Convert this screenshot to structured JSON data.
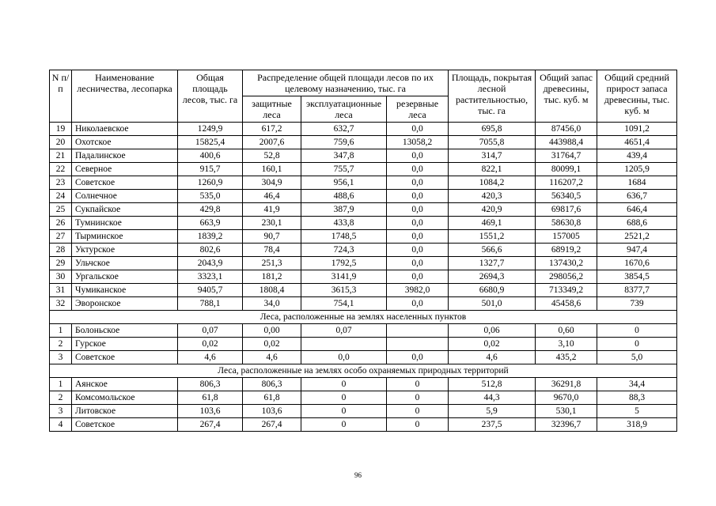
{
  "page": {
    "number": "96"
  },
  "table": {
    "header": {
      "col_n": "N п/п",
      "col_name": "Наименование лесничества, лесопарка",
      "col_total_area": "Общая площадь лесов, тыс. га",
      "col_distribution": "Распределение общей площади лесов по их целевому назначению, тыс. га",
      "col_protective": "защитные леса",
      "col_exploitable": "эксплуатационные леса",
      "col_reserve": "резервные леса",
      "col_covered": "Площадь, покрытая лесной растительностью, тыс. га",
      "col_stock": "Общий запас древесины, тыс. куб. м",
      "col_growth": "Общий средний прирост запаса древесины, тыс. куб. м"
    },
    "sections": [
      {
        "title": null,
        "rows": [
          [
            "19",
            "Николаевское",
            "1249,9",
            "617,2",
            "632,7",
            "0,0",
            "695,8",
            "87456,0",
            "1091,2"
          ],
          [
            "20",
            "Охотское",
            "15825,4",
            "2007,6",
            "759,6",
            "13058,2",
            "7055,8",
            "443988,4",
            "4651,4"
          ],
          [
            "21",
            "Падалинское",
            "400,6",
            "52,8",
            "347,8",
            "0,0",
            "314,7",
            "31764,7",
            "439,4"
          ],
          [
            "22",
            "Северное",
            "915,7",
            "160,1",
            "755,7",
            "0,0",
            "822,1",
            "80099,1",
            "1205,9"
          ],
          [
            "23",
            "Советское",
            "1260,9",
            "304,9",
            "956,1",
            "0,0",
            "1084,2",
            "116207,2",
            "1684"
          ],
          [
            "24",
            "Солнечное",
            "535,0",
            "46,4",
            "488,6",
            "0,0",
            "420,3",
            "56340,5",
            "636,7"
          ],
          [
            "25",
            "Сукпайское",
            "429,8",
            "41,9",
            "387,9",
            "0,0",
            "420,9",
            "69817,6",
            "646,4"
          ],
          [
            "26",
            "Тумнинское",
            "663,9",
            "230,1",
            "433,8",
            "0,0",
            "469,1",
            "58630,8",
            "688,6"
          ],
          [
            "27",
            "Тырминское",
            "1839,2",
            "90,7",
            "1748,5",
            "0,0",
            "1551,2",
            "157005",
            "2521,2"
          ],
          [
            "28",
            "Уктурское",
            "802,6",
            "78,4",
            "724,3",
            "0,0",
            "566,6",
            "68919,2",
            "947,4"
          ],
          [
            "29",
            "Ульчское",
            "2043,9",
            "251,3",
            "1792,5",
            "0,0",
            "1327,7",
            "137430,2",
            "1670,6"
          ],
          [
            "30",
            "Ургальское",
            "3323,1",
            "181,2",
            "3141,9",
            "0,0",
            "2694,3",
            "298056,2",
            "3854,5"
          ],
          [
            "31",
            "Чумиканское",
            "9405,7",
            "1808,4",
            "3615,3",
            "3982,0",
            "6680,9",
            "713349,2",
            "8377,7"
          ],
          [
            "32",
            "Эворонское",
            "788,1",
            "34,0",
            "754,1",
            "0,0",
            "501,0",
            "45458,6",
            "739"
          ]
        ]
      },
      {
        "title": "Леса, расположенные на землях населенных пунктов",
        "rows": [
          [
            "1",
            "Болоньское",
            "0,07",
            "0,00",
            "0,07",
            "",
            "0,06",
            "0,60",
            "0"
          ],
          [
            "2",
            "Гурское",
            "0,02",
            "0,02",
            "",
            "",
            "0,02",
            "3,10",
            "0"
          ],
          [
            "3",
            "Советское",
            "4,6",
            "4,6",
            "0,0",
            "0,0",
            "4,6",
            "435,2",
            "5,0"
          ]
        ]
      },
      {
        "title": "Леса, расположенные на землях особо охраняемых природных территорий",
        "rows": [
          [
            "1",
            "Аянское",
            "806,3",
            "806,3",
            "0",
            "0",
            "512,8",
            "36291,8",
            "34,4"
          ],
          [
            "2",
            "Комсомольское",
            "61,8",
            "61,8",
            "0",
            "0",
            "44,3",
            "9670,0",
            "88,3"
          ],
          [
            "3",
            "Литовское",
            "103,6",
            "103,6",
            "0",
            "0",
            "5,9",
            "530,1",
            "5"
          ],
          [
            "4",
            "Советское",
            "267,4",
            "267,4",
            "0",
            "0",
            "237,5",
            "32396,7",
            "318,9"
          ]
        ]
      }
    ]
  }
}
